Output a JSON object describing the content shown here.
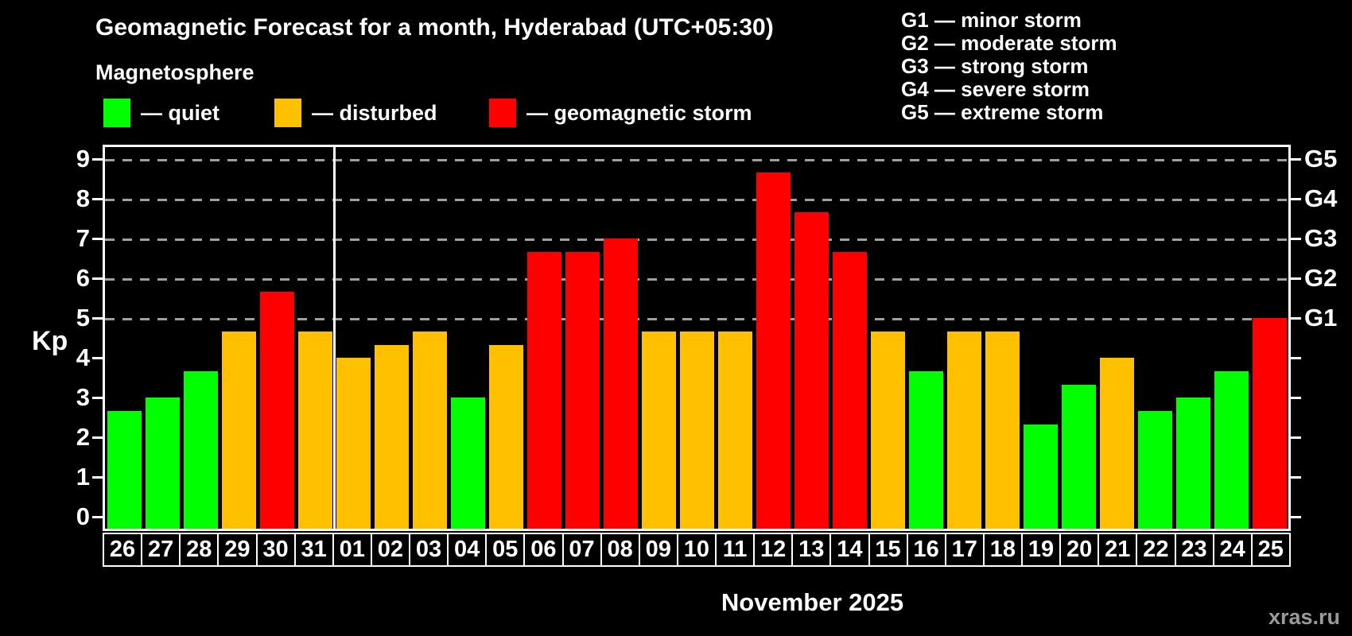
{
  "title": "Geomagnetic Forecast for a month, Hyderabad (UTC+05:30)",
  "subtitle": "Magnetosphere",
  "legend": {
    "quiet_label": "— quiet",
    "disturbed_label": "— disturbed",
    "storm_label": "— geomagnetic storm"
  },
  "g_legend": [
    "G1 — minor storm",
    "G2 — moderate storm",
    "G3 — strong storm",
    "G4 — severe storm",
    "G5 — extreme storm"
  ],
  "axis": {
    "kp_label": "Kp",
    "y_ticks": [
      0,
      1,
      2,
      3,
      4,
      5,
      6,
      7,
      8,
      9
    ],
    "right_labels": [
      {
        "kp": 9,
        "label": "G5"
      },
      {
        "kp": 8,
        "label": "G4"
      },
      {
        "kp": 7,
        "label": "G3"
      },
      {
        "kp": 6,
        "label": "G2"
      },
      {
        "kp": 5,
        "label": "G1"
      }
    ]
  },
  "xlabel": "November 2025",
  "watermark": "xras.ru",
  "colors": {
    "quiet": "#00ff00",
    "disturbed": "#ffc000",
    "storm": "#ff0000",
    "background": "#000000",
    "grid": "#a0a0a0",
    "text": "#ffffff"
  },
  "chart_data": {
    "type": "bar",
    "title": "Geomagnetic Forecast for a month, Hyderabad (UTC+05:30)",
    "xlabel": "November 2025",
    "ylabel": "Kp",
    "ylim": [
      0,
      9
    ],
    "gridlines_at": [
      5,
      6,
      7,
      8,
      9
    ],
    "legend_position": "top",
    "categories": [
      "26",
      "27",
      "28",
      "29",
      "30",
      "31",
      "01",
      "02",
      "03",
      "04",
      "05",
      "06",
      "07",
      "08",
      "09",
      "10",
      "11",
      "12",
      "13",
      "14",
      "15",
      "16",
      "17",
      "18",
      "19",
      "20",
      "21",
      "22",
      "23",
      "24",
      "25"
    ],
    "values": [
      2.67,
      3.0,
      3.67,
      4.67,
      5.67,
      4.67,
      4.0,
      4.33,
      4.67,
      3.0,
      4.33,
      6.67,
      6.67,
      7.0,
      4.67,
      4.67,
      4.67,
      8.67,
      7.67,
      6.67,
      4.67,
      3.67,
      4.67,
      4.67,
      2.33,
      3.33,
      4.0,
      2.67,
      3.0,
      3.67,
      5.0
    ],
    "statuses": [
      "quiet",
      "quiet",
      "quiet",
      "disturbed",
      "storm",
      "disturbed",
      "disturbed",
      "disturbed",
      "disturbed",
      "quiet",
      "disturbed",
      "storm",
      "storm",
      "storm",
      "disturbed",
      "disturbed",
      "disturbed",
      "storm",
      "storm",
      "storm",
      "disturbed",
      "quiet",
      "disturbed",
      "disturbed",
      "quiet",
      "quiet",
      "disturbed",
      "quiet",
      "quiet",
      "quiet",
      "storm"
    ],
    "month_separator_after_index": 5
  }
}
